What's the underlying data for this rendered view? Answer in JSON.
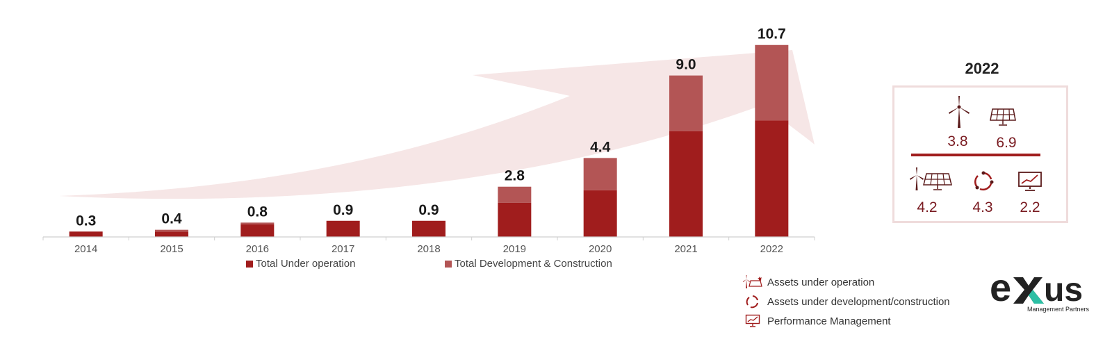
{
  "chart_data": {
    "type": "bar",
    "stacked": true,
    "categories": [
      "2014",
      "2015",
      "2016",
      "2017",
      "2018",
      "2019",
      "2020",
      "2021",
      "2022"
    ],
    "series": [
      {
        "name": "Total Under operation",
        "values": [
          0.3,
          0.3,
          0.7,
          0.9,
          0.9,
          1.9,
          2.6,
          5.9,
          6.5
        ],
        "color": "#a01d1d"
      },
      {
        "name": "Total Development & Construction",
        "values": [
          0.0,
          0.1,
          0.1,
          0.0,
          0.0,
          0.9,
          1.8,
          3.1,
          4.2
        ],
        "color": "#b35555"
      }
    ],
    "totals": [
      "0.3",
      "0.4",
      "0.8",
      "0.9",
      "0.9",
      "2.8",
      "4.4",
      "9.0",
      "10.7"
    ],
    "ylim": [
      0,
      11
    ],
    "legend_position": "bottom",
    "grid": false
  },
  "panel": {
    "year": "2022",
    "top": [
      {
        "icon": "wind-turbine-icon",
        "value": "3.8"
      },
      {
        "icon": "solar-panel-icon",
        "value": "6.9"
      }
    ],
    "bottom": [
      {
        "icon": "wind-solar-icon",
        "value": "4.2"
      },
      {
        "icon": "cycle-arrows-icon",
        "value": "4.3"
      },
      {
        "icon": "monitor-chart-icon",
        "value": "2.2"
      }
    ]
  },
  "side_legend": [
    {
      "icon": "wind-solar-icon",
      "label": "Assets under operation"
    },
    {
      "icon": "cycle-arrows-icon",
      "label": "Assets under development/construction"
    },
    {
      "icon": "monitor-chart-icon",
      "label": "Performance Management"
    }
  ],
  "logo": {
    "text": "exus",
    "subtext": "Management Partners",
    "color": "#222222",
    "accent": "#2bbfa4"
  },
  "colors": {
    "accent": "#a01d1d",
    "light": "#b35555",
    "arrow": "#f6e6e6"
  }
}
